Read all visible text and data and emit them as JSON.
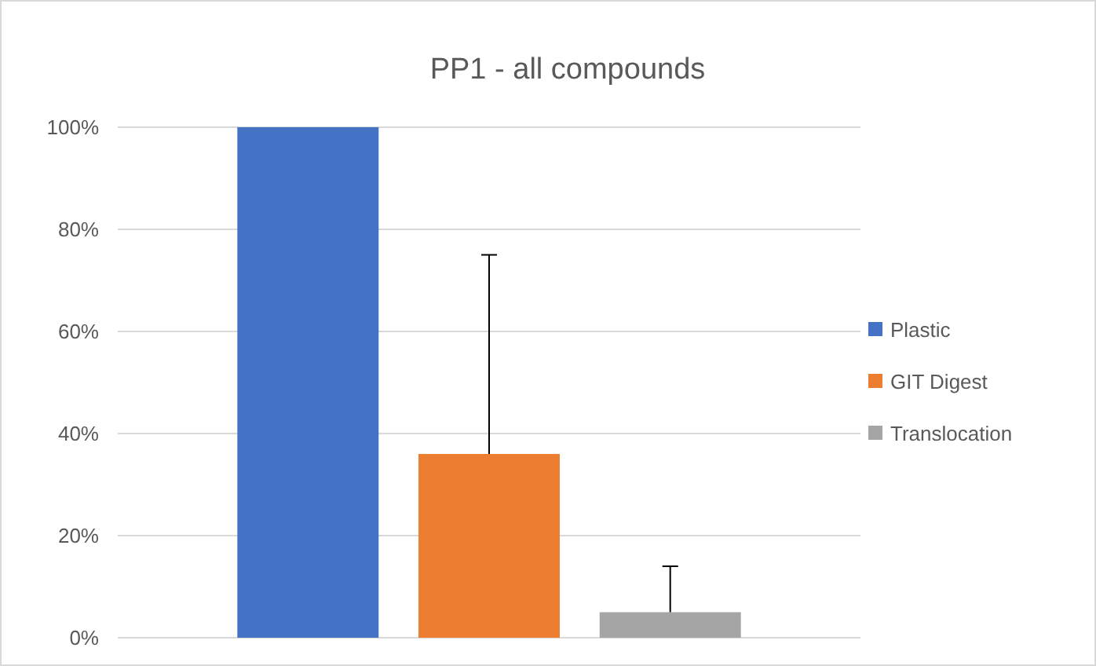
{
  "chart_data": {
    "type": "bar",
    "title": "PP1 - all compounds",
    "categories": [
      null
    ],
    "series": [
      {
        "name": "Plastic",
        "color": "#4472c4",
        "values": [
          100
        ],
        "errors": [
          null
        ]
      },
      {
        "name": "GIT Digest",
        "color": "#ed7d31",
        "values": [
          36
        ],
        "errors": [
          [
            36,
            75
          ]
        ]
      },
      {
        "name": "Translocation",
        "color": "#a5a5a5",
        "values": [
          5
        ],
        "errors": [
          [
            5,
            14
          ]
        ]
      }
    ],
    "ylim": [
      0,
      100
    ],
    "yticks": [
      {
        "value": 0,
        "label": "0%"
      },
      {
        "value": 20,
        "label": "20%"
      },
      {
        "value": 40,
        "label": "40%"
      },
      {
        "value": 60,
        "label": "60%"
      },
      {
        "value": 80,
        "label": "80%"
      },
      {
        "value": 100,
        "label": "100%"
      }
    ],
    "grid": "y",
    "legend": "right"
  }
}
